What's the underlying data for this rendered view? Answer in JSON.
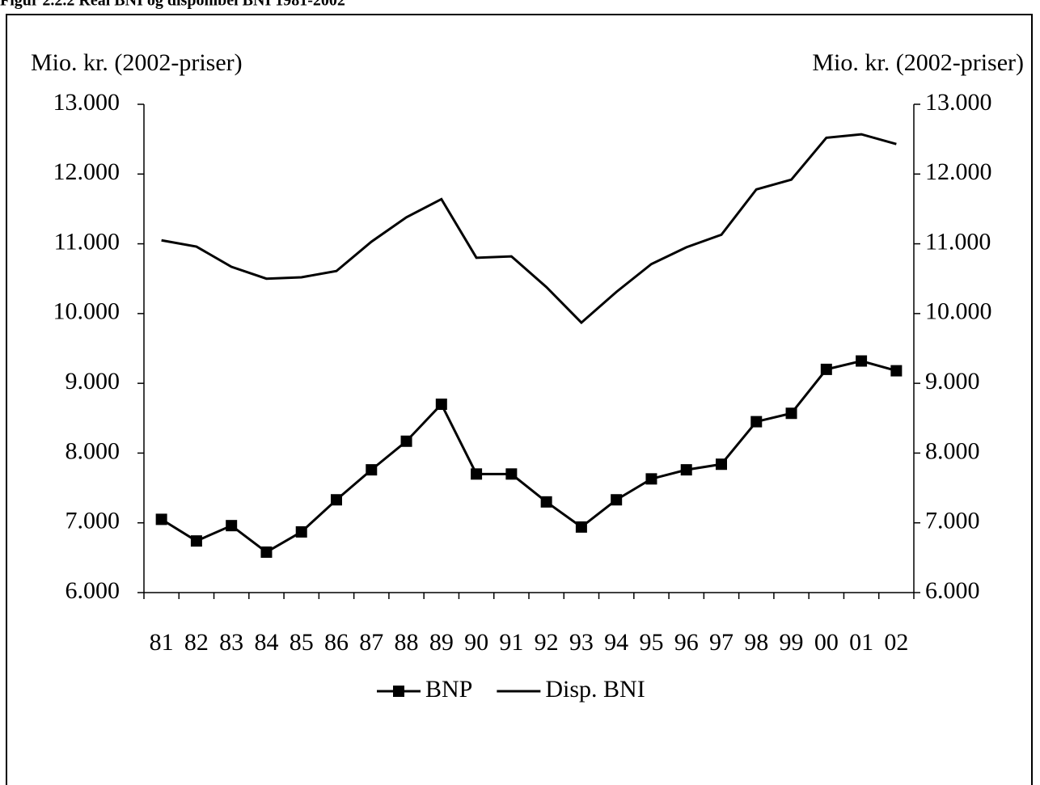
{
  "chart_data": {
    "type": "line",
    "title": "Figur 2.2.2 Real BNI og disponibel BNI 1981-2002",
    "ylabel": "Mio. kr. (2002-priser)",
    "y2label": "Mio. kr. (2002-priser)",
    "categories": [
      "81",
      "82",
      "83",
      "84",
      "85",
      "86",
      "87",
      "88",
      "89",
      "90",
      "91",
      "92",
      "93",
      "94",
      "95",
      "96",
      "97",
      "98",
      "99",
      "00",
      "01",
      "02"
    ],
    "series": [
      {
        "name": "BNP",
        "color": "#000000",
        "marker": "square",
        "values": [
          7050,
          6740,
          6960,
          6580,
          6870,
          7330,
          7760,
          8170,
          8700,
          7700,
          7700,
          7300,
          6940,
          7330,
          7630,
          7760,
          7840,
          8450,
          8570,
          9200,
          9320,
          9180
        ]
      },
      {
        "name": "Disp. BNI",
        "color": "#000000",
        "marker": "none",
        "values": [
          11050,
          10960,
          10670,
          10500,
          10520,
          10610,
          11030,
          11380,
          11640,
          10800,
          10820,
          10380,
          9870,
          10310,
          10710,
          10950,
          11130,
          11780,
          11920,
          12520,
          12570,
          12430
        ]
      }
    ],
    "ylim": [
      6000,
      13000
    ],
    "yticks": [
      {
        "value": 6000,
        "label": "6.000"
      },
      {
        "value": 7000,
        "label": "7.000"
      },
      {
        "value": 8000,
        "label": "8.000"
      },
      {
        "value": 9000,
        "label": "9.000"
      },
      {
        "value": 10000,
        "label": "10.000"
      },
      {
        "value": 11000,
        "label": "11.000"
      },
      {
        "value": 12000,
        "label": "12.000"
      },
      {
        "value": 13000,
        "label": "13.000"
      }
    ],
    "y2lim": [
      6000,
      13000
    ],
    "y2ticks": [
      {
        "value": 6000,
        "label": "6.000"
      },
      {
        "value": 7000,
        "label": "7.000"
      },
      {
        "value": 8000,
        "label": "8.000"
      },
      {
        "value": 9000,
        "label": "9.000"
      },
      {
        "value": 10000,
        "label": "10.000"
      },
      {
        "value": 11000,
        "label": "11.000"
      },
      {
        "value": 12000,
        "label": "12.000"
      },
      {
        "value": 13000,
        "label": "13.000"
      }
    ],
    "grid": false,
    "legend": "bottom"
  }
}
